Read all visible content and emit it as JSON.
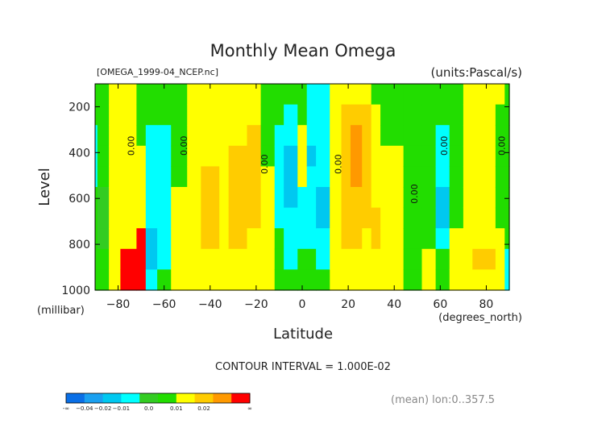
{
  "chart_data": {
    "type": "heatmap",
    "title": "Monthly Mean Omega",
    "subtitle_left": "[OMEGA_1999-04_NCEP.nc]",
    "subtitle_right": "(units:Pascal/s)",
    "xlabel": "Latitude",
    "x_unit_note": "(degrees_north)",
    "ylabel": "Level",
    "y_unit_note": "(millibar)",
    "xlim": [
      -90,
      90
    ],
    "ylim": [
      1000,
      100
    ],
    "x_ticks": [
      -80,
      -60,
      -40,
      -20,
      0,
      20,
      40,
      60,
      80
    ],
    "x_tick_labels": [
      "−80",
      "−60",
      "−40",
      "−20",
      "0",
      "20",
      "40",
      "60",
      "80"
    ],
    "y_ticks": [
      200,
      400,
      600,
      800,
      1000
    ],
    "y_tick_labels": [
      "200",
      "400",
      "600",
      "800",
      "1000"
    ],
    "contour_interval_text": "CONTOUR INTERVAL = 1.000E-02",
    "mean_note": "(mean) lon:0..357.5",
    "contour_labels": [
      {
        "text": "0.00",
        "lat": -73,
        "level": 370
      },
      {
        "text": "0.00",
        "lat": -50,
        "level": 370
      },
      {
        "text": "0.00",
        "lat": -15,
        "level": 450
      },
      {
        "text": "0.00",
        "lat": 17,
        "level": 450
      },
      {
        "text": "0.00",
        "lat": 50,
        "level": 580
      },
      {
        "text": "0.00",
        "lat": 63,
        "level": 370
      },
      {
        "text": "0.00",
        "lat": 88,
        "level": 370
      }
    ],
    "color_scale": {
      "labels": [
        "-∞",
        "−0.04",
        "−0.02",
        "−0.01",
        "0.0",
        "0.01",
        "0.02",
        "∞"
      ],
      "colors": [
        "#0a6fe6",
        "#1aa0f0",
        "#00c8f0",
        "#00ffff",
        "#33cc22",
        "#22dd00",
        "#ffff00",
        "#ffcc00",
        "#ff9900",
        "#ff0000"
      ]
    },
    "bands": [
      {
        "lat": [
          -90,
          -89
        ],
        "classes": [
          5,
          5,
          3,
          3,
          3,
          5,
          5,
          5,
          5,
          5
        ]
      },
      {
        "lat": [
          -89,
          -84
        ],
        "classes": [
          5,
          5,
          5,
          5,
          5,
          4,
          4,
          4,
          5,
          5
        ]
      },
      {
        "lat": [
          -84,
          -79
        ],
        "classes": [
          6,
          6,
          6,
          6,
          6,
          6,
          6,
          6,
          6,
          6
        ]
      },
      {
        "lat": [
          -79,
          -72
        ],
        "classes": [
          6,
          6,
          6,
          6,
          6,
          6,
          6,
          6,
          9,
          9
        ]
      },
      {
        "lat": [
          -72,
          -68
        ],
        "classes": [
          5,
          5,
          5,
          6,
          6,
          6,
          6,
          9,
          9,
          9
        ]
      },
      {
        "lat": [
          -68,
          -63
        ],
        "classes": [
          5,
          5,
          3,
          3,
          3,
          3,
          3,
          2,
          2,
          3
        ]
      },
      {
        "lat": [
          -63,
          -57
        ],
        "classes": [
          5,
          5,
          3,
          3,
          3,
          3,
          3,
          3,
          3,
          5
        ]
      },
      {
        "lat": [
          -57,
          -50
        ],
        "classes": [
          5,
          5,
          5,
          5,
          5,
          6,
          6,
          6,
          6,
          6
        ]
      },
      {
        "lat": [
          -50,
          -44
        ],
        "classes": [
          6,
          6,
          6,
          6,
          6,
          6,
          6,
          6,
          6,
          6
        ]
      },
      {
        "lat": [
          -44,
          -36
        ],
        "classes": [
          6,
          6,
          6,
          6,
          7,
          7,
          7,
          7,
          6,
          6
        ]
      },
      {
        "lat": [
          -36,
          -32
        ],
        "classes": [
          6,
          6,
          6,
          6,
          6,
          6,
          6,
          6,
          6,
          6
        ]
      },
      {
        "lat": [
          -32,
          -24
        ],
        "classes": [
          6,
          6,
          6,
          7,
          7,
          7,
          7,
          7,
          6,
          6
        ]
      },
      {
        "lat": [
          -24,
          -18
        ],
        "classes": [
          6,
          6,
          7,
          7,
          7,
          7,
          7,
          6,
          6,
          6
        ]
      },
      {
        "lat": [
          -18,
          -12
        ],
        "classes": [
          5,
          5,
          5,
          5,
          6,
          6,
          6,
          6,
          6,
          6
        ]
      },
      {
        "lat": [
          -12,
          -8
        ],
        "classes": [
          5,
          5,
          3,
          3,
          3,
          3,
          3,
          5,
          5,
          5
        ]
      },
      {
        "lat": [
          -8,
          -2
        ],
        "classes": [
          5,
          3,
          3,
          2,
          2,
          2,
          3,
          3,
          3,
          5
        ]
      },
      {
        "lat": [
          -2,
          2
        ],
        "classes": [
          5,
          5,
          6,
          6,
          6,
          3,
          3,
          3,
          5,
          5
        ]
      },
      {
        "lat": [
          2,
          6
        ],
        "classes": [
          3,
          3,
          3,
          2,
          3,
          3,
          3,
          3,
          5,
          5
        ]
      },
      {
        "lat": [
          6,
          12
        ],
        "classes": [
          3,
          3,
          3,
          3,
          3,
          2,
          2,
          3,
          3,
          5
        ]
      },
      {
        "lat": [
          12,
          17
        ],
        "classes": [
          6,
          6,
          6,
          6,
          6,
          6,
          6,
          6,
          6,
          6
        ]
      },
      {
        "lat": [
          17,
          21
        ],
        "classes": [
          6,
          7,
          7,
          7,
          7,
          7,
          7,
          7,
          6,
          6
        ]
      },
      {
        "lat": [
          21,
          26
        ],
        "classes": [
          6,
          7,
          8,
          8,
          8,
          7,
          7,
          7,
          6,
          6
        ]
      },
      {
        "lat": [
          26,
          30
        ],
        "classes": [
          6,
          7,
          7,
          7,
          7,
          7,
          7,
          6,
          6,
          6
        ]
      },
      {
        "lat": [
          30,
          34
        ],
        "classes": [
          5,
          6,
          6,
          6,
          6,
          6,
          7,
          7,
          6,
          6
        ]
      },
      {
        "lat": [
          34,
          44
        ],
        "classes": [
          5,
          5,
          5,
          6,
          6,
          6,
          6,
          6,
          6,
          6
        ]
      },
      {
        "lat": [
          44,
          52
        ],
        "classes": [
          5,
          5,
          5,
          5,
          5,
          5,
          5,
          5,
          5,
          5
        ]
      },
      {
        "lat": [
          52,
          58
        ],
        "classes": [
          5,
          5,
          5,
          5,
          5,
          5,
          5,
          5,
          6,
          6
        ]
      },
      {
        "lat": [
          58,
          64
        ],
        "classes": [
          5,
          5,
          3,
          3,
          3,
          2,
          2,
          3,
          5,
          5
        ]
      },
      {
        "lat": [
          64,
          70
        ],
        "classes": [
          5,
          5,
          5,
          5,
          5,
          5,
          5,
          6,
          6,
          6
        ]
      },
      {
        "lat": [
          70,
          74
        ],
        "classes": [
          6,
          6,
          6,
          6,
          6,
          6,
          6,
          6,
          6,
          6
        ]
      },
      {
        "lat": [
          74,
          84
        ],
        "classes": [
          6,
          6,
          6,
          6,
          6,
          6,
          6,
          6,
          7,
          6
        ]
      },
      {
        "lat": [
          84,
          88
        ],
        "classes": [
          6,
          5,
          5,
          5,
          5,
          5,
          5,
          6,
          6,
          6
        ]
      },
      {
        "lat": [
          88,
          90
        ],
        "classes": [
          5,
          5,
          5,
          5,
          5,
          5,
          5,
          5,
          3,
          3
        ]
      }
    ]
  }
}
